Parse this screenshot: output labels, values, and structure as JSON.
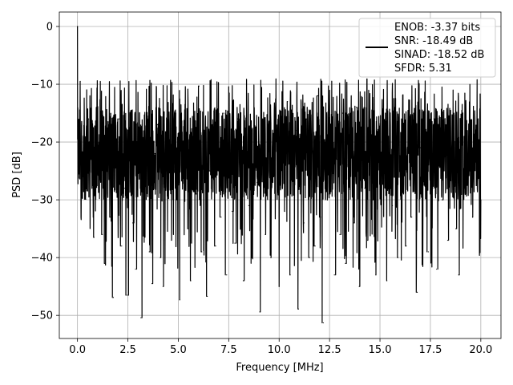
{
  "chart_data": {
    "type": "line",
    "title": "",
    "xlabel": "Frequency [MHz]",
    "ylabel": "PSD [dB]",
    "xlim": [
      -0.9,
      21.0
    ],
    "ylim": [
      -54,
      2.5
    ],
    "xticks": [
      0.0,
      2.5,
      5.0,
      7.5,
      10.0,
      12.5,
      15.0,
      17.5,
      20.0
    ],
    "xtick_labels": [
      "0.0",
      "2.5",
      "5.0",
      "7.5",
      "10.0",
      "12.5",
      "15.0",
      "17.5",
      "20.0"
    ],
    "yticks": [
      0,
      -10,
      -20,
      -30,
      -40,
      -50
    ],
    "ytick_labels": [
      "0",
      "−10",
      "−20",
      "−30",
      "−40",
      "−50"
    ],
    "grid": true,
    "legend_position": "top-right",
    "line_color": "#000000",
    "series": [
      {
        "x_range": [
          0.0,
          20.0
        ],
        "peak": {
          "x": 0.0,
          "y": 0.0
        },
        "noise_floor_typical_range": [
          -30,
          -14
        ],
        "noise_upper_envelope": -9,
        "values": [
          0.0,
          -9.5,
          -26,
          -29.9,
          -16,
          -23,
          -36.5,
          -14,
          -20,
          -36,
          -41,
          -19,
          -33,
          -46.9,
          -22,
          -16,
          -38,
          -28,
          -46.5,
          -21,
          -34,
          -42,
          -18,
          -50.4,
          -27,
          -16,
          -39,
          -44.5,
          -22,
          -17,
          -40,
          -45,
          -25,
          -20,
          -37,
          -16,
          -30,
          -47.3,
          -23,
          -13.5,
          -35,
          -44,
          -19,
          -29,
          -10.3,
          -39,
          -21,
          -46.7,
          -25,
          -17,
          -38,
          -21,
          -33,
          -15,
          -43,
          -22,
          -32,
          -37.5,
          -16,
          -28,
          -44,
          -20,
          -31,
          -35,
          -18,
          -27,
          -49.4,
          -22,
          -36,
          -17,
          -40,
          -26,
          -19,
          -45,
          -21,
          -32,
          -13,
          -43,
          -24,
          -18,
          -48.9,
          -25,
          -34,
          -16,
          -40,
          -21,
          -38,
          -12,
          -33,
          -51.3,
          -20,
          -29,
          -17,
          -43,
          -23,
          -36,
          -15,
          -41,
          -24,
          -19,
          -34,
          -14,
          -45,
          -21,
          -28,
          -37,
          -16,
          -30,
          -43,
          -20,
          -27,
          -18,
          -44,
          -23,
          -31,
          -14,
          -40,
          -25,
          -17,
          -38,
          -22,
          -33,
          -15,
          -46,
          -21,
          -29,
          -19,
          -39,
          -25,
          -16,
          -42,
          -23,
          -30,
          -17,
          -37,
          -24,
          -15,
          -35,
          -43,
          -20,
          -28,
          -18,
          -25,
          -33,
          -21,
          -16,
          -30
        ]
      }
    ]
  },
  "legend": {
    "lines": [
      "ENOB: -3.37 bits",
      "SNR: -18.49 dB",
      "SINAD: -18.52 dB",
      "SFDR: 5.31"
    ]
  }
}
